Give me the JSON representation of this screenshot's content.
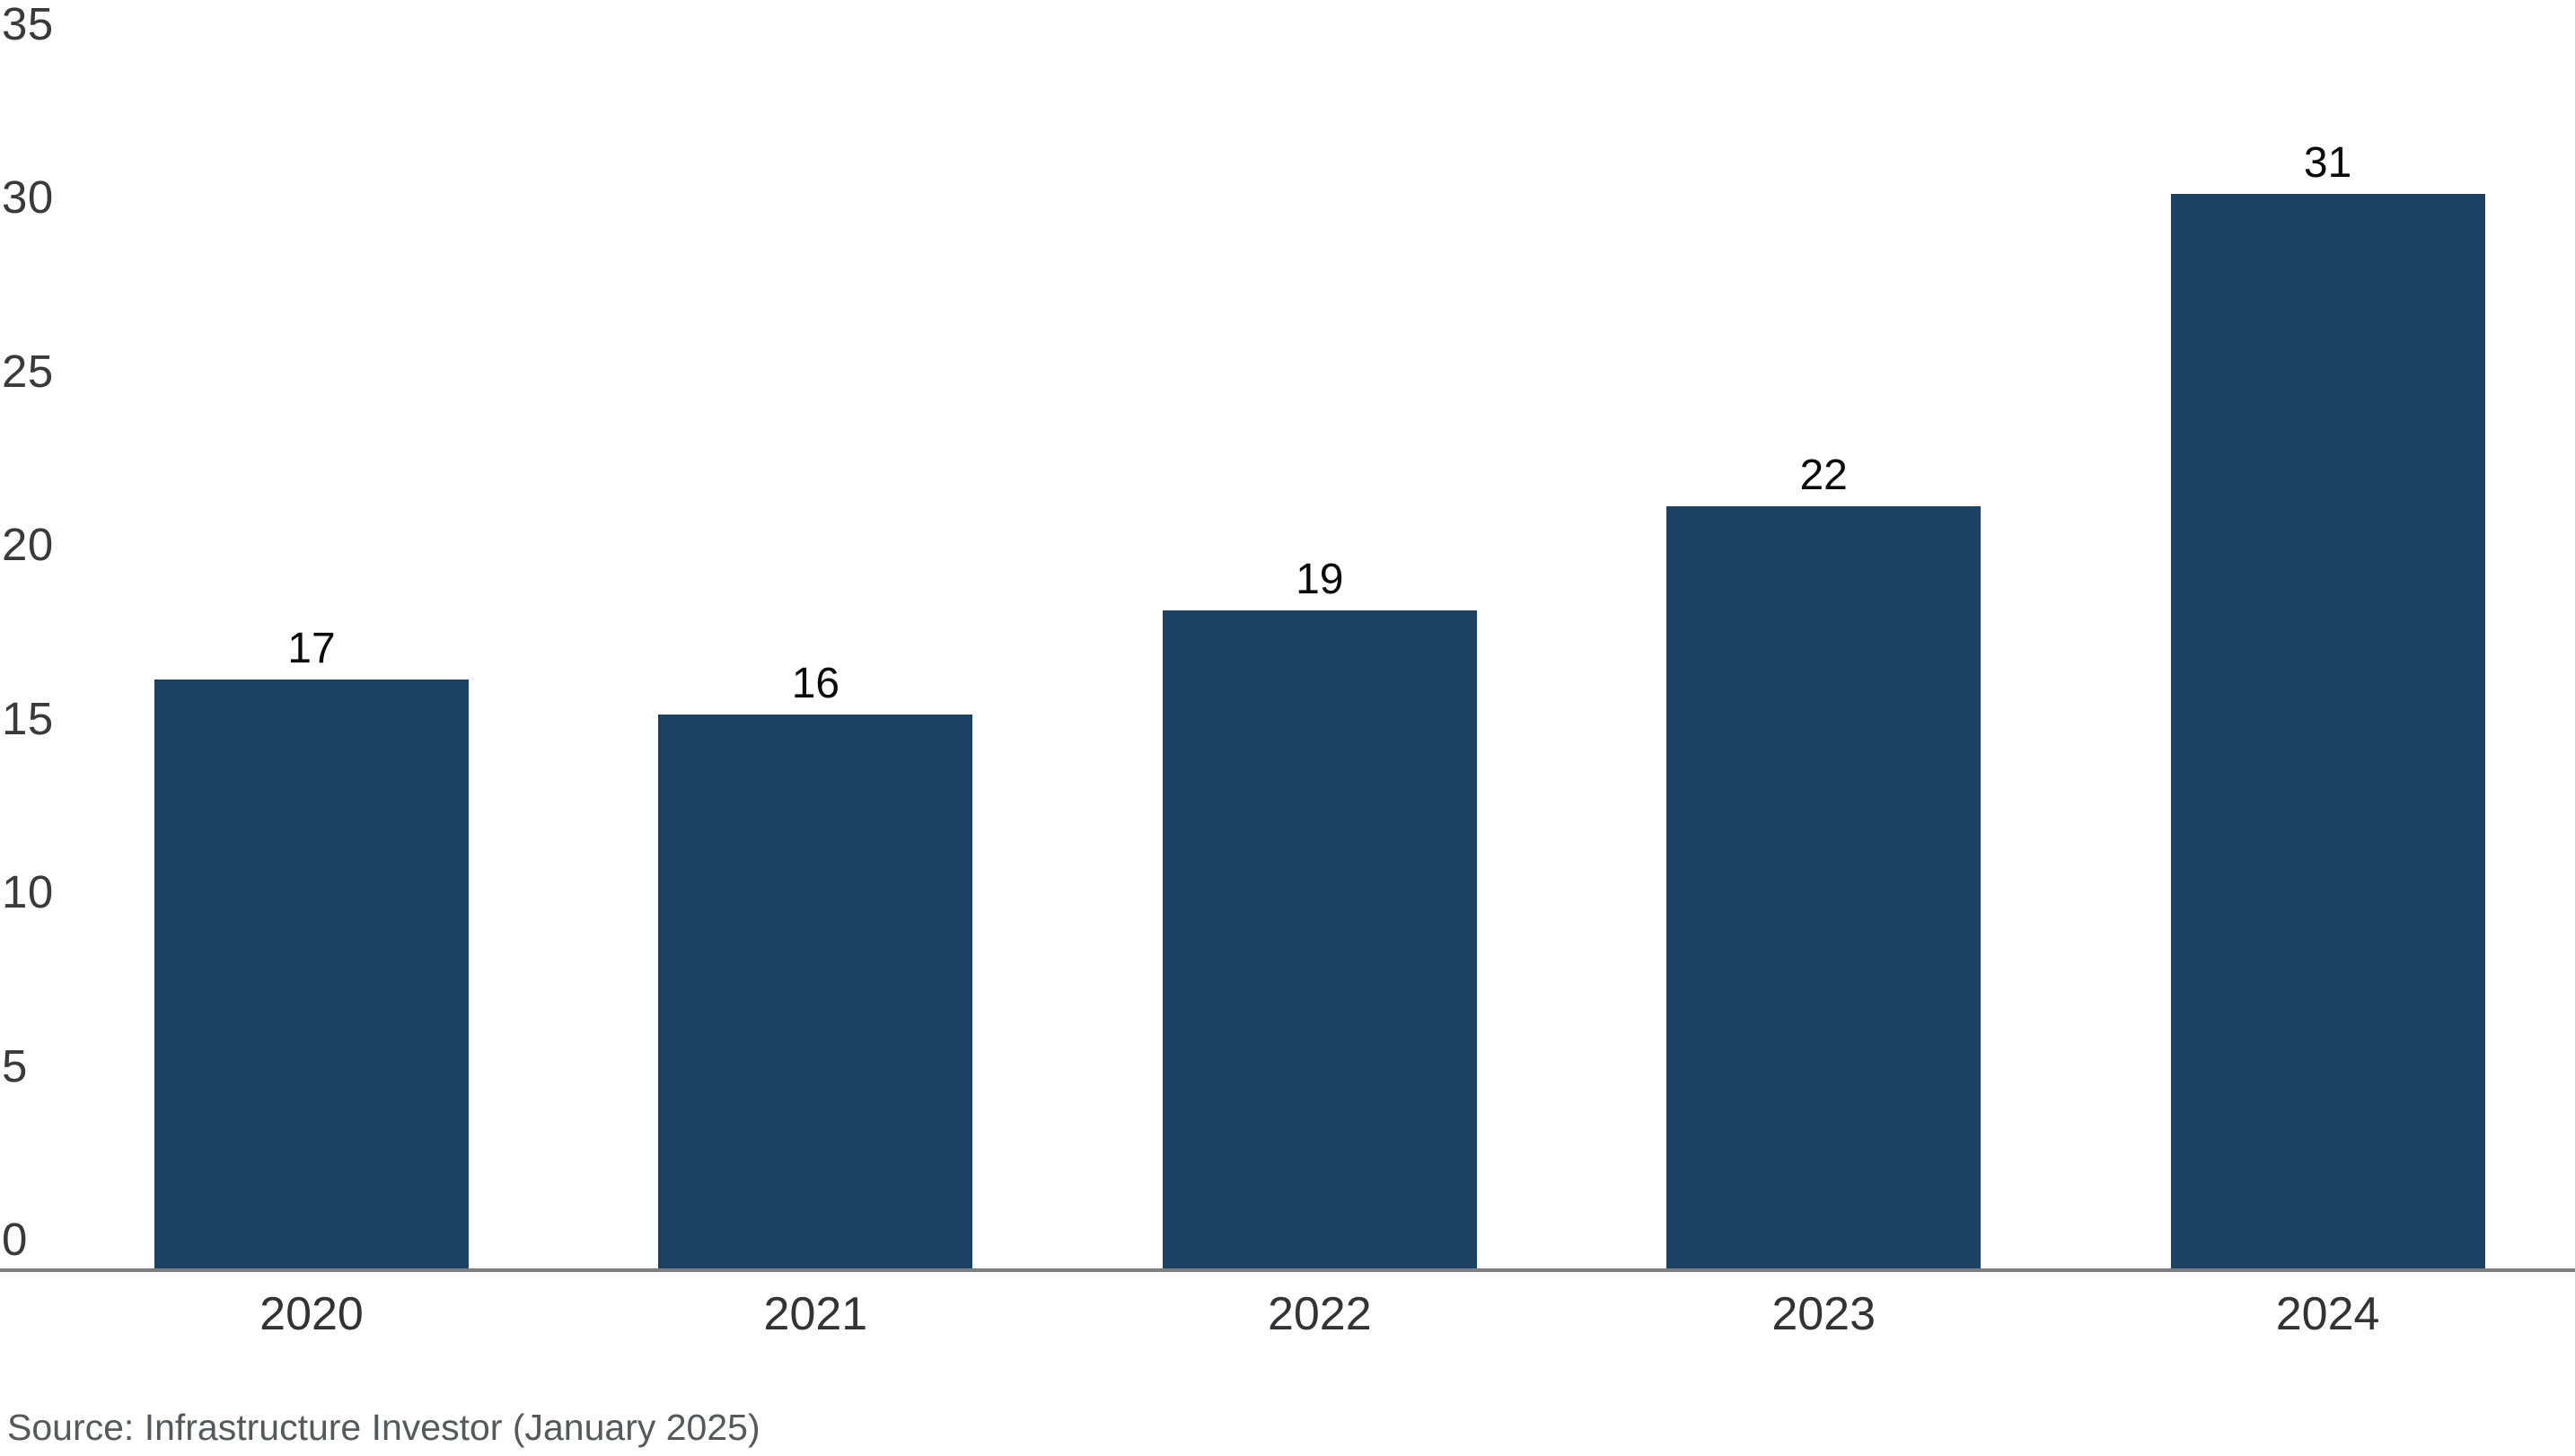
{
  "chart_data": {
    "type": "bar",
    "title": "",
    "xlabel": "",
    "ylabel": "",
    "categories": [
      "2020",
      "2021",
      "2022",
      "2023",
      "2024"
    ],
    "values": [
      17,
      16,
      19,
      22,
      31
    ],
    "bar_labels": [
      "17",
      "16",
      "19",
      "22",
      "31"
    ],
    "ylim": [
      0,
      35
    ],
    "yticks": [
      0,
      5,
      10,
      15,
      20,
      25,
      30,
      35
    ],
    "grid": false,
    "legend": "none",
    "colors": {
      "bar": "#1b4163",
      "axis_line": "#7f7f7f",
      "y_tick_label": "#3a3a3c",
      "x_tick_label": "#333336",
      "value_label": "#0a0a0a",
      "source_text": "#56585b",
      "background": "#ffffff"
    }
  },
  "source_note": "Source: Infrastructure Investor (January 2025)"
}
